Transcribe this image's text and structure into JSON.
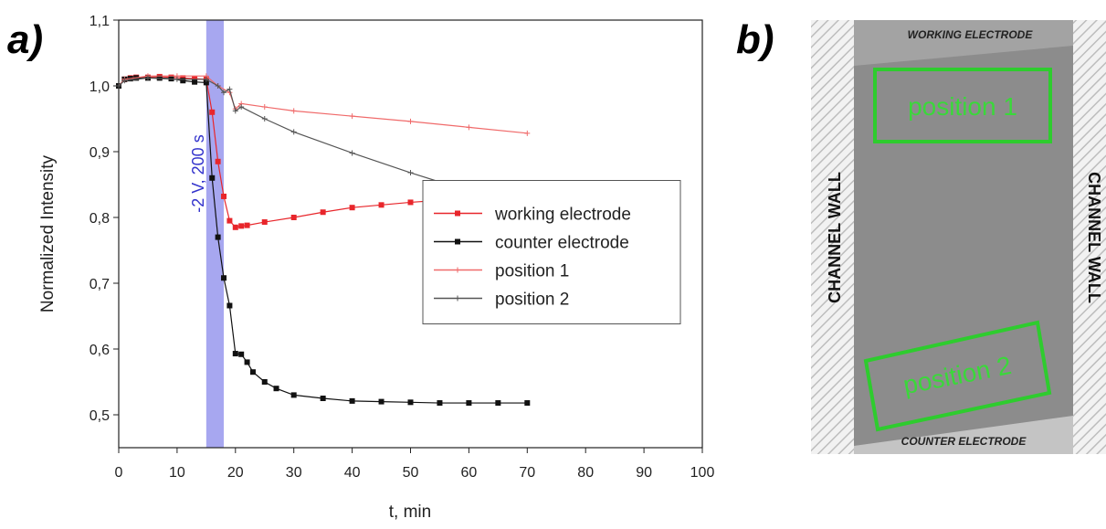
{
  "panel_labels": [
    "a)",
    "b)"
  ],
  "chart_data": {
    "type": "line",
    "xlabel": "t, min",
    "ylabel": "Normalized Intensity",
    "xlim": [
      0,
      100
    ],
    "xticks": [
      0,
      10,
      20,
      30,
      40,
      50,
      60,
      70,
      80,
      90,
      100
    ],
    "ylim": [
      0.45,
      1.1
    ],
    "yticks": [
      {
        "value": 0.5,
        "label": "0,5"
      },
      {
        "value": 0.6,
        "label": "0,6"
      },
      {
        "value": 0.7,
        "label": "0,7"
      },
      {
        "value": 0.8,
        "label": "0,8"
      },
      {
        "value": 0.9,
        "label": "0,9"
      },
      {
        "value": 1.0,
        "label": "1,0"
      },
      {
        "value": 1.1,
        "label": "1,1"
      }
    ],
    "legend": "center right",
    "annotations": [
      {
        "text": "-2 V, 200 s",
        "xrange": [
          15,
          18
        ],
        "color": "#a7a7f0"
      }
    ],
    "series": [
      {
        "name": "working electrode",
        "color": "#e8262b",
        "marker": "square",
        "x": [
          0,
          1,
          2,
          3,
          5,
          7,
          9,
          11,
          13,
          15,
          16,
          17,
          18,
          19,
          20,
          21,
          22,
          25,
          30,
          35,
          40,
          45,
          50,
          55,
          60,
          65,
          70
        ],
        "values": [
          1.0,
          1.01,
          1.012,
          1.013,
          1.013,
          1.014,
          1.013,
          1.012,
          1.011,
          1.01,
          0.96,
          0.885,
          0.832,
          0.795,
          0.785,
          0.787,
          0.788,
          0.793,
          0.8,
          0.808,
          0.815,
          0.819,
          0.823,
          0.826,
          0.828,
          0.829,
          0.829
        ]
      },
      {
        "name": "counter electrode",
        "color": "#111111",
        "marker": "square",
        "x": [
          0,
          1,
          2,
          3,
          5,
          7,
          9,
          11,
          13,
          15,
          16,
          17,
          18,
          19,
          20,
          21,
          22,
          23,
          25,
          27,
          30,
          35,
          40,
          45,
          50,
          55,
          60,
          65,
          70
        ],
        "values": [
          1.0,
          1.01,
          1.011,
          1.012,
          1.012,
          1.012,
          1.011,
          1.008,
          1.006,
          1.005,
          0.86,
          0.77,
          0.708,
          0.666,
          0.593,
          0.592,
          0.58,
          0.565,
          0.55,
          0.54,
          0.53,
          0.525,
          0.521,
          0.52,
          0.519,
          0.518,
          0.518,
          0.518,
          0.518
        ]
      },
      {
        "name": "position 1",
        "color": "#f06a6a",
        "marker": "plus",
        "x": [
          0,
          1,
          5,
          10,
          15,
          17,
          19,
          20,
          21,
          25,
          30,
          40,
          50,
          60,
          70
        ],
        "values": [
          1.0,
          1.01,
          1.015,
          1.015,
          1.015,
          1.0,
          0.99,
          0.965,
          0.973,
          0.968,
          0.962,
          0.954,
          0.946,
          0.937,
          0.928
        ]
      },
      {
        "name": "position 2",
        "color": "#555555",
        "marker": "plus",
        "x": [
          0,
          1,
          5,
          10,
          15,
          17,
          18,
          19,
          20,
          21,
          25,
          30,
          40,
          50,
          60,
          65,
          70
        ],
        "values": [
          1.0,
          1.008,
          1.012,
          1.01,
          1.01,
          1.0,
          0.99,
          0.995,
          0.962,
          0.968,
          0.95,
          0.93,
          0.898,
          0.868,
          0.84,
          0.83,
          0.828
        ]
      }
    ]
  },
  "photo": {
    "top_label": "WORKING ELECTRODE",
    "bottom_label": "COUNTER ELECTRODE",
    "left_wall": "CHANNEL WALL",
    "right_wall": "CHANNEL WALL",
    "regions": [
      "position 1",
      "position 2"
    ]
  }
}
